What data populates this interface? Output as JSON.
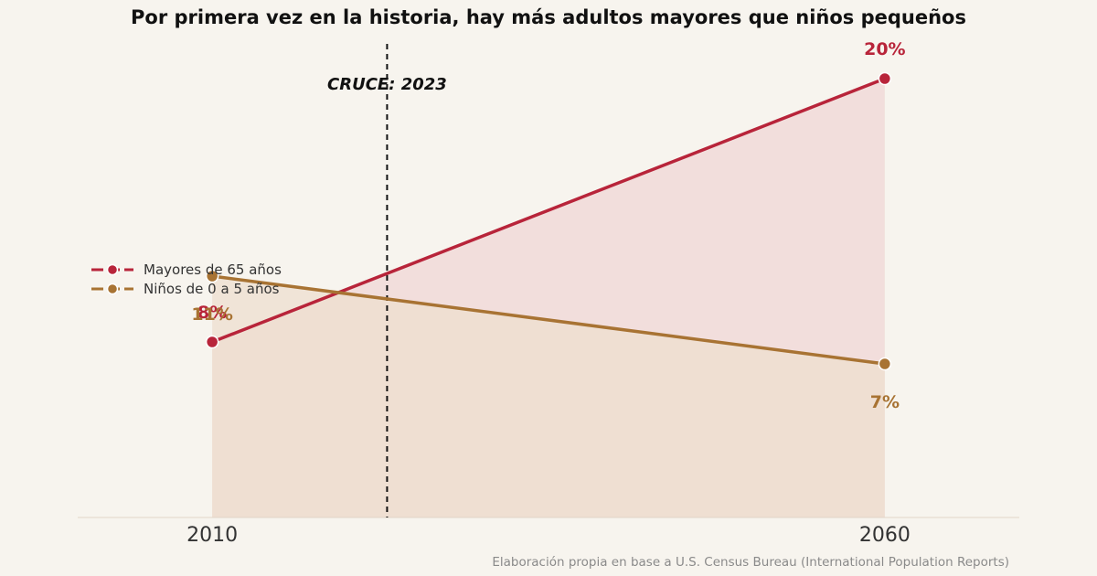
{
  "chart_data": {
    "type": "area",
    "title": "Por primera vez en la historia, hay más adultos mayores que niños pequeños",
    "x": [
      2010,
      2060
    ],
    "xticks": [
      "2010",
      "2060"
    ],
    "xlim": [
      2000,
      2070
    ],
    "ylim": [
      0,
      21.5
    ],
    "grid": false,
    "legend_position": "left",
    "series": [
      {
        "name": "Mayores de 65 años",
        "values": [
          8,
          20
        ],
        "labels": [
          "8%",
          "20%"
        ],
        "color": "#b8243a",
        "fill": "#f0d7d6"
      },
      {
        "name": "Niños de 0 a 5 años",
        "values": [
          11,
          7
        ],
        "labels": [
          "11%",
          "7%"
        ],
        "color": "#a87333",
        "fill": "#eedfcf"
      }
    ],
    "annotation": {
      "text": "CRUCE: 2023",
      "x": 2023
    },
    "source": "Elaboración propia en base a U.S. Census Bureau (International Population Reports)"
  }
}
